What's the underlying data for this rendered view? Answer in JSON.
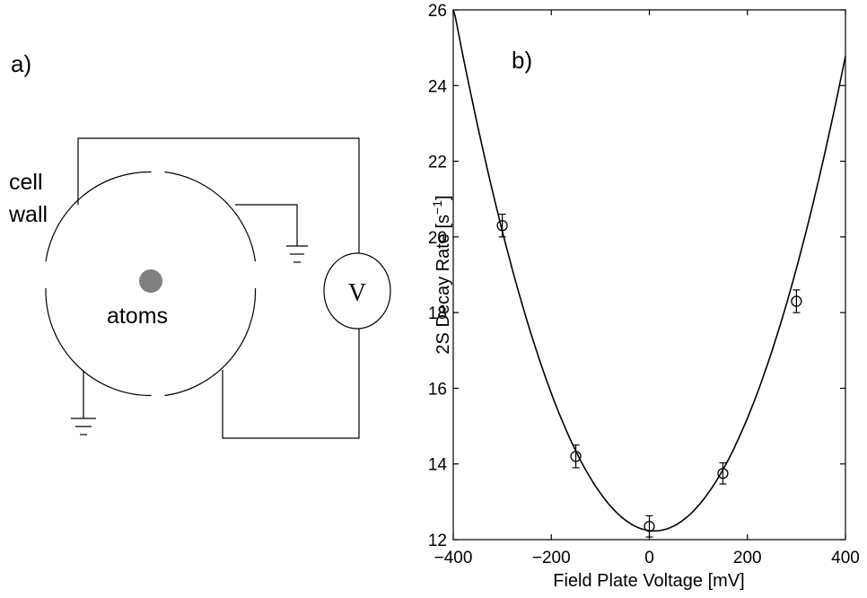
{
  "panel_a": {
    "label": "a)",
    "cell_wall_line1": "cell",
    "cell_wall_line2": "wall",
    "atoms_label": "atoms",
    "voltmeter_label": "V"
  },
  "panel_b": {
    "label": "b)"
  },
  "chart_data": {
    "type": "scatter",
    "xlabel": "Field Plate Voltage [mV]",
    "ylabel": "2S Decay Rate [s",
    "ylabel_superscript": "−1",
    "ylabel_suffix": "]",
    "xlim": [
      -400,
      400
    ],
    "ylim": [
      12,
      26
    ],
    "xticks": [
      -400,
      -200,
      0,
      200,
      400
    ],
    "xtick_labels": [
      "−400",
      "−200",
      "0",
      "200",
      "400"
    ],
    "yticks": [
      12,
      14,
      16,
      18,
      20,
      22,
      24,
      26
    ],
    "ytick_labels": [
      "12",
      "14",
      "16",
      "18",
      "20",
      "22",
      "24",
      "26"
    ],
    "grid": false,
    "series": [
      {
        "marker": "open-circle",
        "x": [
          -300,
          -150,
          0,
          150,
          300
        ],
        "y": [
          20.3,
          14.2,
          12.35,
          13.75,
          18.3
        ],
        "yerr": [
          0.3,
          0.3,
          0.28,
          0.28,
          0.3
        ]
      }
    ],
    "fit": {
      "kind": "parabola",
      "x0": 10,
      "y0": 12.23,
      "a": 8.25e-05
    }
  }
}
